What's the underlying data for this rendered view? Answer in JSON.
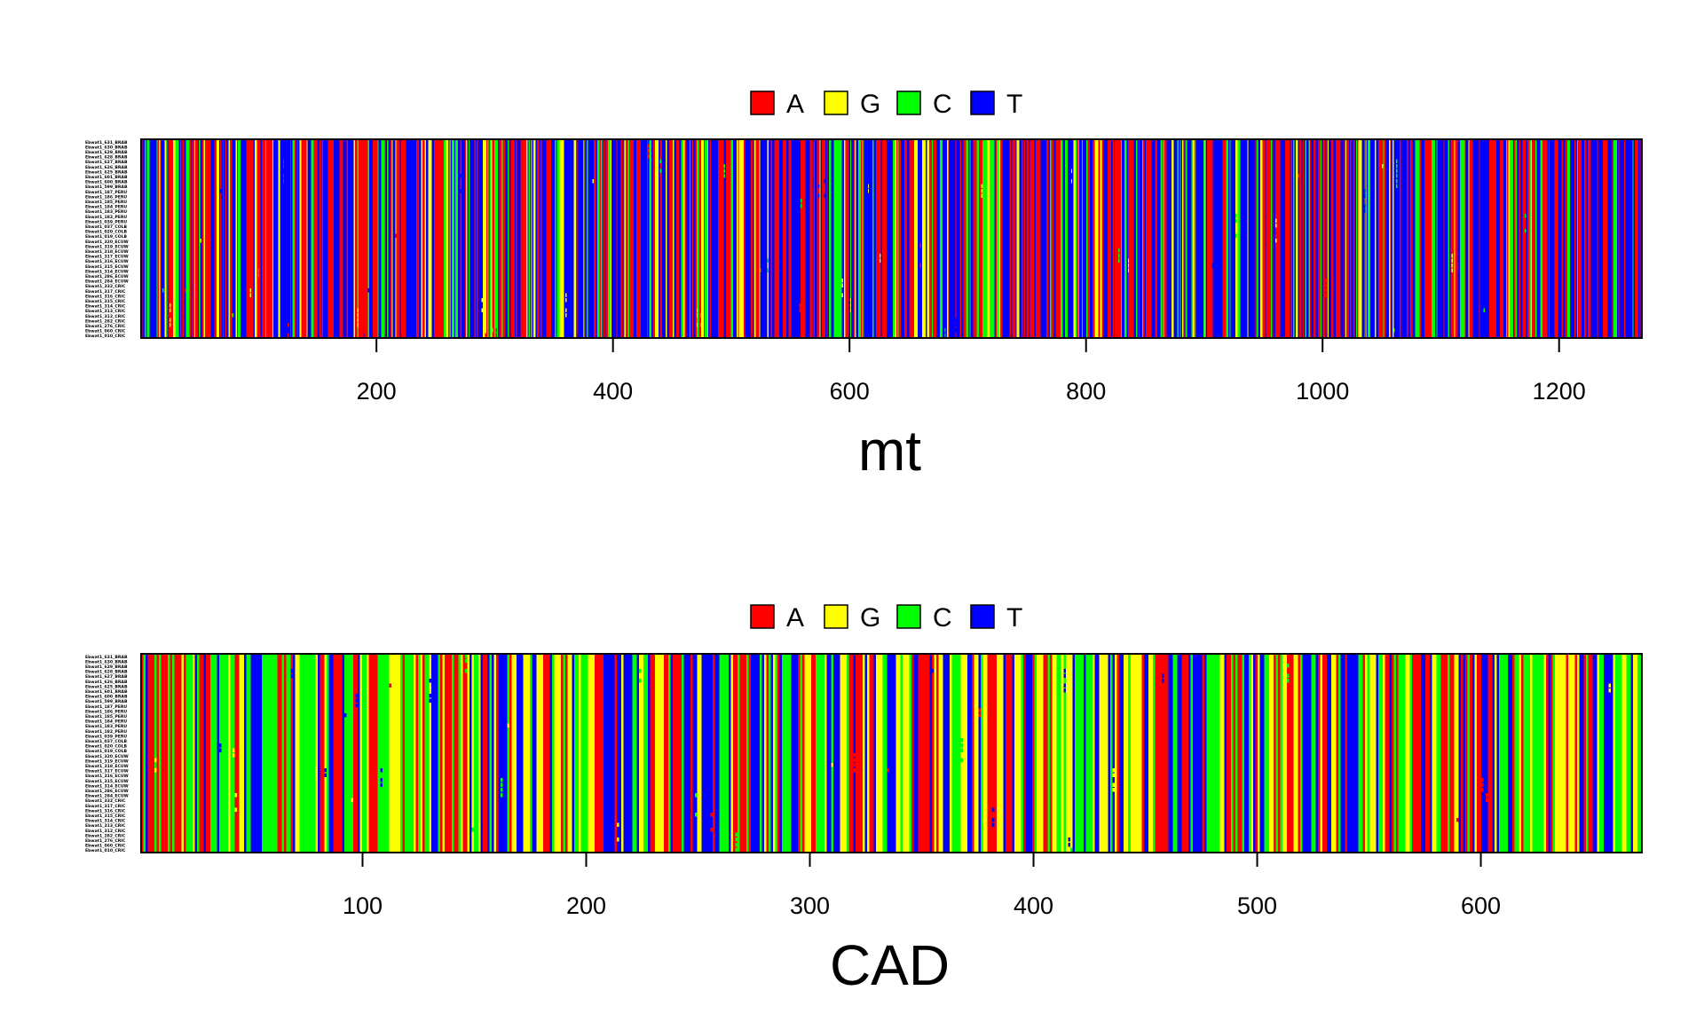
{
  "colors": {
    "A": "#ff0000",
    "G": "#ffff00",
    "C": "#00ff00",
    "T": "#0000ff",
    "frame": "#000000",
    "background": "#ffffff"
  },
  "legend": {
    "entries": [
      {
        "base": "A",
        "label": "A"
      },
      {
        "base": "G",
        "label": "G"
      },
      {
        "base": "C",
        "label": "C"
      },
      {
        "base": "T",
        "label": "T"
      }
    ]
  },
  "sequence_labels": [
    "Ebwat1_631_BRAB",
    "Ebwat1_630_BRAB",
    "Ebwat1_629_BRAB",
    "Ebwat1_628_BRAB",
    "Ebwat1_627_BRAB",
    "Ebwat1_626_BRAB",
    "Ebwat1_625_BRAB",
    "Ebwat1_601_BRAB",
    "Ebwat1_600_BRAB",
    "Ebwat1_599_BRAB",
    "Ebwat1_187_PERU",
    "Ebwat1_186_PERU",
    "Ebwat1_185_PERU",
    "Ebwat1_184_PERU",
    "Ebwat1_183_PERU",
    "Ebwat1_182_PERU",
    "Ebwat1_039_PERU",
    "Ebwat1_037_COLB",
    "Ebwat1_020_COLB",
    "Ebwat1_019_COLB",
    "Ebwat1_320_ECUW",
    "Ebwat1_319_ECUW",
    "Ebwat1_318_ECUW",
    "Ebwat1_317_ECUW",
    "Ebwat1_316_ECUW",
    "Ebwat1_315_ECUW",
    "Ebwat1_314_ECUW",
    "Ebwat1_286_ECUW",
    "Ebwat1_284_ECUW",
    "Ebwat1_332_CRIC",
    "Ebwat1_317_CRIC",
    "Ebwat1_316_CRIC",
    "Ebwat1_315_CRIC",
    "Ebwat1_314_CRIC",
    "Ebwat1_313_CRIC",
    "Ebwat1_312_CRIC",
    "Ebwat1_282_CRIC",
    "Ebwat1_276_CRIC",
    "Ebwat1_060_CRIC",
    "Ebwat1_010_CRIC"
  ],
  "chart_data": [
    {
      "type": "heatmap",
      "title": "mt",
      "xlabel": "",
      "ylabel": "",
      "n_sites": 1270,
      "n_sequences": 40,
      "xlim": [
        1,
        1270
      ],
      "xticks": [
        200,
        400,
        600,
        800,
        1000,
        1200
      ],
      "xtick_labels": [
        "200",
        "400",
        "600",
        "800",
        "1000",
        "1200"
      ],
      "grid": false,
      "legend_position": "top-center",
      "bases": [
        "A",
        "G",
        "C",
        "T"
      ],
      "column_pattern": "red, blue and purple dominated, with scattered yellow and green columns",
      "base_weights": {
        "A": 0.36,
        "G": 0.09,
        "C": 0.11,
        "T": 0.44
      },
      "seed": 7
    },
    {
      "type": "heatmap",
      "title": "CAD",
      "xlabel": "",
      "ylabel": "",
      "n_sites": 672,
      "n_sequences": 40,
      "xlim": [
        1,
        672
      ],
      "xticks": [
        100,
        200,
        300,
        400,
        500,
        600
      ],
      "xtick_labels": [
        "100",
        "200",
        "300",
        "400",
        "500",
        "600"
      ],
      "grid": false,
      "legend_position": "top-center",
      "bases": [
        "A",
        "G",
        "C",
        "T"
      ],
      "column_pattern": "mixed columns of all four bases with more green and yellow",
      "base_weights": {
        "A": 0.28,
        "G": 0.24,
        "C": 0.25,
        "T": 0.23
      },
      "seed": 23
    }
  ]
}
